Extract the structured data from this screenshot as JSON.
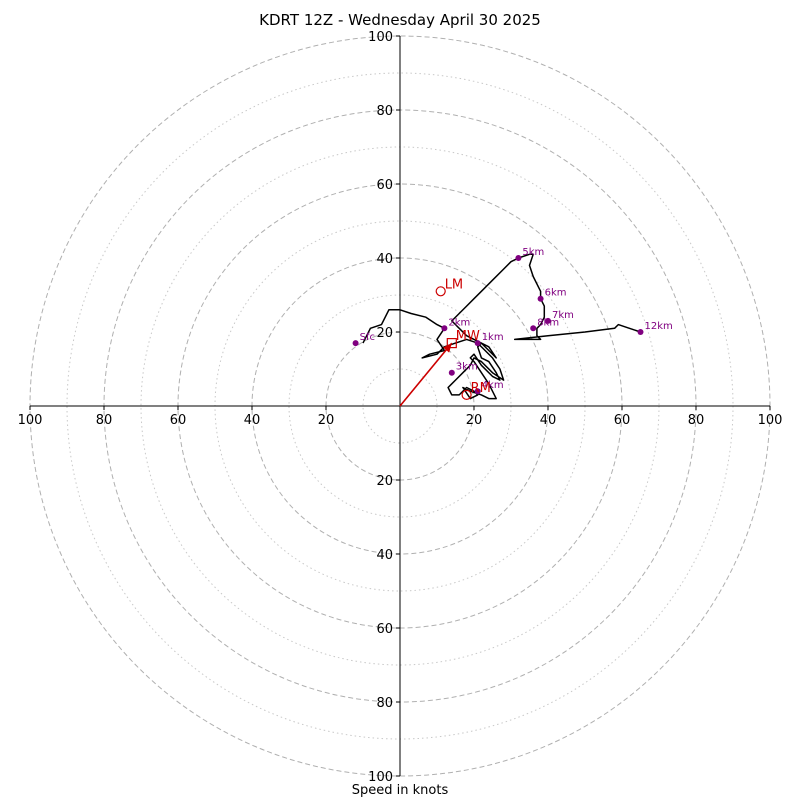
{
  "chart_data": {
    "type": "hodograph",
    "title": "KDRT 12Z - Wednesday April 30 2025",
    "xlabel": "Speed in knots",
    "units": "knots",
    "max_speed": 100,
    "rings_major": [
      20,
      40,
      60,
      80,
      100
    ],
    "rings_minor": [
      10,
      30,
      50,
      70,
      90
    ],
    "x_tick_labels": [
      "100",
      "80",
      "60",
      "40",
      "20",
      "20",
      "40",
      "60",
      "80",
      "100"
    ],
    "x_tick_values": [
      -100,
      -80,
      -60,
      -40,
      -20,
      20,
      40,
      60,
      80,
      100
    ],
    "y_tick_labels": [
      "100",
      "80",
      "60",
      "40",
      "20",
      "20",
      "40",
      "60",
      "80",
      "100"
    ],
    "y_tick_values": [
      100,
      80,
      60,
      40,
      20,
      -20,
      -40,
      -60,
      -80,
      -100
    ],
    "grid": true,
    "colors": {
      "trace": "#000000",
      "height_points": "#800080",
      "storm_motion": "#cc0000",
      "grid": "#b0b0b0"
    },
    "trace": [
      [
        -10,
        17
      ],
      [
        -8,
        21
      ],
      [
        -5,
        22
      ],
      [
        -3,
        26
      ],
      [
        0,
        26
      ],
      [
        3,
        25
      ],
      [
        7,
        24
      ],
      [
        10,
        22
      ],
      [
        12,
        21
      ],
      [
        10,
        18
      ],
      [
        12,
        15
      ],
      [
        8,
        14
      ],
      [
        6,
        13
      ],
      [
        10,
        14
      ],
      [
        12,
        16
      ],
      [
        15,
        17
      ],
      [
        18,
        18
      ],
      [
        21,
        17
      ],
      [
        23,
        15
      ],
      [
        25,
        13
      ],
      [
        27,
        10
      ],
      [
        28,
        7
      ],
      [
        25,
        9
      ],
      [
        22,
        12
      ],
      [
        20,
        13
      ],
      [
        19,
        11
      ],
      [
        17,
        9
      ],
      [
        15,
        7
      ],
      [
        14,
        6
      ],
      [
        13,
        5
      ],
      [
        14,
        3
      ],
      [
        16,
        3
      ],
      [
        18,
        5
      ],
      [
        20,
        4
      ],
      [
        21,
        3
      ],
      [
        19,
        2
      ],
      [
        17,
        5
      ],
      [
        19,
        4
      ],
      [
        22,
        3
      ],
      [
        24,
        2
      ],
      [
        26,
        2
      ],
      [
        24,
        6
      ],
      [
        22,
        9
      ],
      [
        20,
        12
      ],
      [
        19,
        13
      ],
      [
        20,
        14
      ],
      [
        22,
        11
      ],
      [
        25,
        8
      ],
      [
        27,
        7
      ],
      [
        26,
        9
      ],
      [
        24,
        12
      ],
      [
        22,
        13
      ],
      [
        21,
        16
      ],
      [
        22,
        17
      ],
      [
        24,
        15
      ],
      [
        26,
        13
      ],
      [
        24,
        16
      ],
      [
        20,
        18
      ],
      [
        18,
        19
      ],
      [
        16,
        21
      ],
      [
        14,
        23
      ],
      [
        16,
        25
      ],
      [
        18,
        27
      ],
      [
        20,
        29
      ],
      [
        22,
        31
      ],
      [
        25,
        34
      ],
      [
        28,
        37
      ],
      [
        30,
        39
      ],
      [
        32,
        40
      ],
      [
        35,
        41
      ],
      [
        36,
        41
      ],
      [
        35,
        38
      ],
      [
        36,
        35
      ],
      [
        37,
        33
      ],
      [
        38,
        31
      ],
      [
        38,
        29
      ],
      [
        39,
        27
      ],
      [
        39,
        25
      ],
      [
        39,
        24
      ],
      [
        38,
        22
      ],
      [
        37,
        21
      ],
      [
        37,
        19
      ],
      [
        38,
        18
      ],
      [
        35,
        18
      ],
      [
        31,
        18
      ],
      [
        40,
        19
      ],
      [
        50,
        20
      ],
      [
        58,
        21
      ],
      [
        59,
        22
      ],
      [
        62,
        21
      ],
      [
        65,
        20
      ]
    ],
    "height_points": [
      {
        "label": "Sfc",
        "u": -12,
        "v": 17
      },
      {
        "label": "1km",
        "u": 21,
        "v": 17
      },
      {
        "label": "2km",
        "u": 12,
        "v": 21
      },
      {
        "label": "3km",
        "u": 14,
        "v": 9
      },
      {
        "label": "4km",
        "u": 21,
        "v": 4
      },
      {
        "label": "5km",
        "u": 32,
        "v": 40
      },
      {
        "label": "6km",
        "u": 38,
        "v": 29
      },
      {
        "label": "7km",
        "u": 40,
        "v": 23
      },
      {
        "label": "8km",
        "u": 36,
        "v": 21
      },
      {
        "label": "12km",
        "u": 65,
        "v": 20
      }
    ],
    "storm_motion": [
      {
        "label": "LM",
        "u": 11,
        "v": 31,
        "marker": "circle"
      },
      {
        "label": "RM",
        "u": 18,
        "v": 3,
        "marker": "circle"
      },
      {
        "label": "MW",
        "u": 14,
        "v": 17,
        "marker": "square"
      }
    ],
    "mean_wind_vector": {
      "u": 14,
      "v": 17
    }
  }
}
